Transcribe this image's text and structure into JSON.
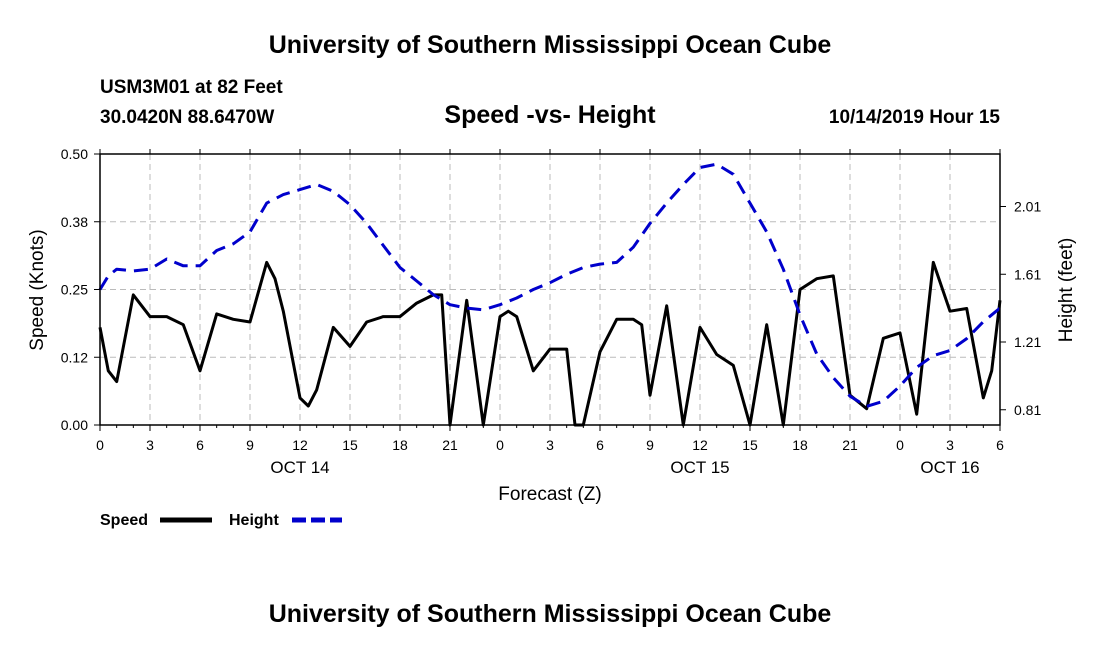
{
  "page": {
    "top_title": "University of Southern Mississippi Ocean Cube",
    "bottom_title": "University of Southern Mississippi Ocean Cube",
    "station": "USM3M01 at 82 Feet",
    "coords": "30.0420N 88.6470W",
    "subtitle": "Speed -vs- Height",
    "datetime": "10/14/2019 Hour 15"
  },
  "colors": {
    "speed": "#000000",
    "height": "#0000cc",
    "grid": "#bbbbbb"
  },
  "chart_data": {
    "type": "line",
    "title": "Speed -vs- Height",
    "xlabel": "Forecast (Z)",
    "ylabel": "Speed (Knots)",
    "y2label": "Height (feet)",
    "xlim": [
      0,
      54
    ],
    "ylim": [
      0,
      0.5
    ],
    "y2lim": [
      0.72,
      2.32
    ],
    "x_ticks": [
      0,
      3,
      6,
      9,
      12,
      15,
      18,
      21,
      24,
      27,
      30,
      33,
      36,
      39,
      42,
      45,
      48,
      51,
      54
    ],
    "x_tick_labels": [
      "0",
      "3",
      "6",
      "9",
      "12",
      "15",
      "18",
      "21",
      "0",
      "3",
      "6",
      "9",
      "12",
      "15",
      "18",
      "21",
      "0",
      "3",
      "6"
    ],
    "date_labels": [
      {
        "x": 12,
        "label": "OCT 14"
      },
      {
        "x": 36,
        "label": "OCT 15"
      },
      {
        "x": 51,
        "label": "OCT 16"
      }
    ],
    "y_ticks": [
      0,
      0.125,
      0.25,
      0.375,
      0.5
    ],
    "y_tick_labels": [
      "0.00",
      "0.12",
      "0.25",
      "0.38",
      "0.50"
    ],
    "y2_ticks": [
      0.81,
      1.21,
      1.61,
      2.01
    ],
    "y2_tick_labels": [
      "0.81",
      "1.21",
      "1.61",
      "2.01"
    ],
    "legend": {
      "position": "bottom-left",
      "speed_label": "Speed",
      "height_label": "Height"
    },
    "series": [
      {
        "name": "Speed",
        "axis": "left",
        "style": "solid",
        "x": [
          0,
          0.5,
          1,
          2,
          3,
          4,
          5,
          6,
          7,
          8,
          9,
          10,
          10.5,
          11,
          12,
          12.5,
          13,
          14,
          15,
          16,
          17,
          18,
          19,
          20,
          20.5,
          21,
          22,
          23,
          24,
          24.5,
          25,
          26,
          27,
          28,
          28.5,
          29,
          30,
          31,
          32,
          32.5,
          33,
          34,
          35,
          36,
          37,
          38,
          39,
          40,
          41,
          42,
          43,
          44,
          45,
          46,
          47,
          48,
          49,
          50,
          51,
          52,
          53,
          53.5,
          54
        ],
        "values": [
          0.18,
          0.1,
          0.08,
          0.24,
          0.2,
          0.2,
          0.185,
          0.1,
          0.205,
          0.195,
          0.19,
          0.3,
          0.27,
          0.21,
          0.05,
          0.035,
          0.065,
          0.18,
          0.145,
          0.19,
          0.2,
          0.2,
          0.225,
          0.24,
          0.24,
          0.0,
          0.23,
          0.0,
          0.2,
          0.21,
          0.2,
          0.1,
          0.14,
          0.14,
          0.0,
          0.0,
          0.135,
          0.195,
          0.195,
          0.185,
          0.055,
          0.22,
          0.0,
          0.18,
          0.13,
          0.11,
          0.0,
          0.185,
          0.0,
          0.25,
          0.27,
          0.275,
          0.055,
          0.03,
          0.16,
          0.17,
          0.02,
          0.3,
          0.21,
          0.215,
          0.05,
          0.1,
          0.23
        ]
      },
      {
        "name": "Height",
        "axis": "right",
        "style": "dashed",
        "x": [
          0,
          0.5,
          1,
          2,
          3,
          4,
          5,
          6,
          7,
          8,
          9,
          10,
          11,
          12,
          13,
          14,
          15,
          16,
          17,
          18,
          19,
          20,
          21,
          22,
          23,
          24,
          25,
          26,
          27,
          28,
          29,
          30,
          31,
          32,
          33,
          34,
          35,
          36,
          37,
          38,
          39,
          40,
          41,
          42,
          43,
          44,
          45,
          46,
          47,
          48,
          49,
          50,
          51,
          52,
          53,
          54
        ],
        "values": [
          1.52,
          1.6,
          1.64,
          1.63,
          1.64,
          1.7,
          1.66,
          1.66,
          1.75,
          1.79,
          1.86,
          2.03,
          2.08,
          2.11,
          2.14,
          2.1,
          2.02,
          1.91,
          1.78,
          1.65,
          1.57,
          1.49,
          1.43,
          1.41,
          1.4,
          1.43,
          1.47,
          1.52,
          1.56,
          1.61,
          1.65,
          1.67,
          1.68,
          1.77,
          1.91,
          2.03,
          2.14,
          2.24,
          2.26,
          2.2,
          2.03,
          1.86,
          1.64,
          1.37,
          1.14,
          1.0,
          0.89,
          0.83,
          0.86,
          0.95,
          1.06,
          1.13,
          1.16,
          1.23,
          1.33,
          1.41
        ]
      }
    ]
  }
}
